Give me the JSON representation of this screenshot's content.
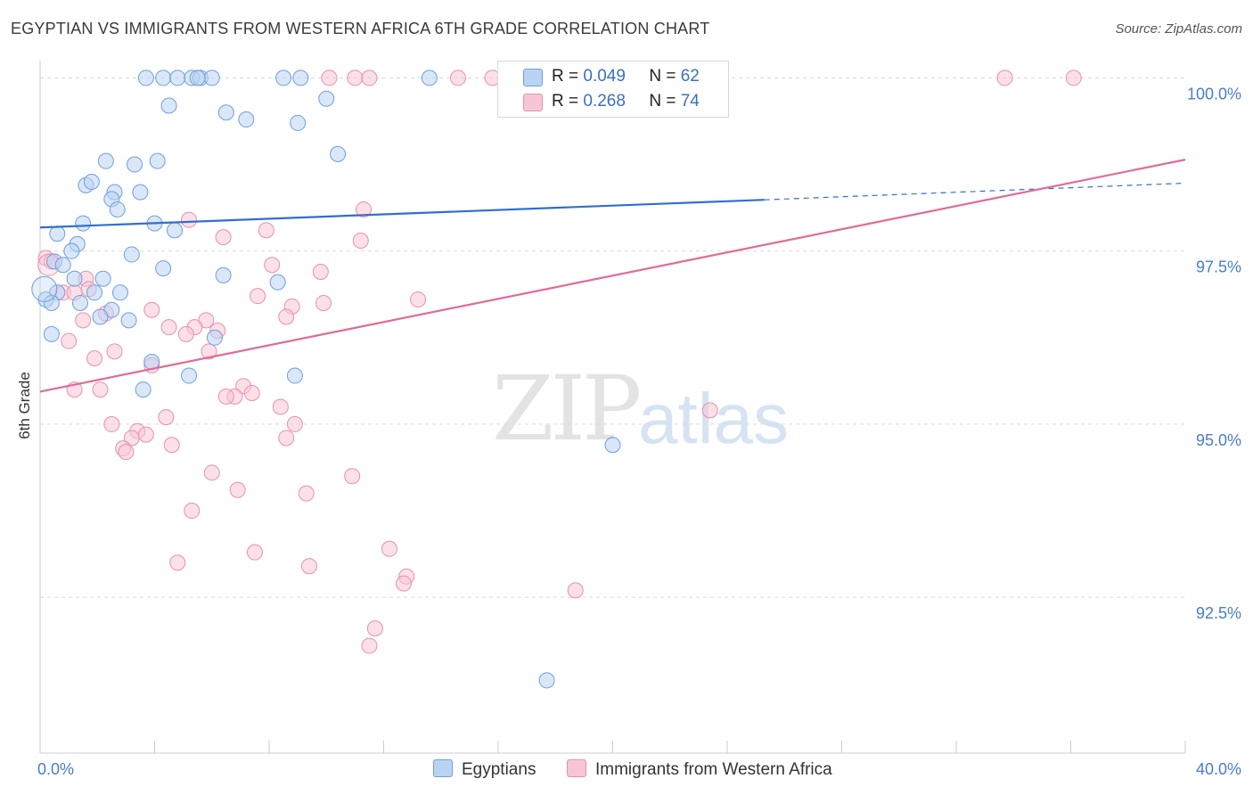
{
  "title": "EGYPTIAN VS IMMIGRANTS FROM WESTERN AFRICA 6TH GRADE CORRELATION CHART",
  "source": "Source: ZipAtlas.com",
  "watermark": {
    "zip": "ZIP",
    "atlas": "atlas"
  },
  "legend": {
    "rows": [
      {
        "r_label": "R =",
        "r_value": "0.049",
        "n_label": "N =",
        "n_value": "62"
      },
      {
        "r_label": "R =",
        "r_value": "0.268",
        "n_label": "N =",
        "n_value": "74"
      }
    ]
  },
  "bottom_legend": [
    "Egyptians",
    "Immigrants from Western Africa"
  ],
  "colors": {
    "blue_fill": "#b9d3f3",
    "blue_stroke": "#6f9fdc",
    "blue_line": "#2f6fd0",
    "pink_fill": "#f7c6d6",
    "pink_stroke": "#e88fae",
    "pink_line": "#e06b98",
    "grid": "#dcdcdc",
    "tick_text": "#4a7cc9"
  },
  "chart_data": {
    "type": "scatter",
    "title": "EGYPTIAN VS IMMIGRANTS FROM WESTERN AFRICA 6TH GRADE CORRELATION CHART",
    "xlabel": "",
    "ylabel": "6th Grade",
    "xlim": [
      0,
      40
    ],
    "ylim": [
      90.25,
      100.25
    ],
    "x_tick_labels": [
      "0.0%",
      "40.0%"
    ],
    "y_ticks": [
      92.5,
      95.0,
      97.5,
      100.0
    ],
    "y_tick_labels": [
      "92.5%",
      "95.0%",
      "97.5%",
      "100.0%"
    ],
    "grid": true,
    "legend_position": "top-center",
    "series": [
      {
        "name": "Egyptians",
        "color": "#6f9fdc",
        "R": 0.049,
        "N": 62,
        "trend": {
          "x0": 0,
          "y0": 97.84,
          "x1": 25.3,
          "y1": 98.24,
          "dashed_to_x": 40,
          "dashed_to_y": 98.48
        },
        "points": [
          [
            3.7,
            100.0
          ],
          [
            4.3,
            100.0
          ],
          [
            4.8,
            100.0
          ],
          [
            5.3,
            100.0
          ],
          [
            5.6,
            100.0
          ],
          [
            6.0,
            100.0
          ],
          [
            8.5,
            100.0
          ],
          [
            9.1,
            100.0
          ],
          [
            13.6,
            100.0
          ],
          [
            5.5,
            100.0
          ],
          [
            10.0,
            99.7
          ],
          [
            4.5,
            99.6
          ],
          [
            6.5,
            99.5
          ],
          [
            7.2,
            99.4
          ],
          [
            9.0,
            99.35
          ],
          [
            10.4,
            98.9
          ],
          [
            2.3,
            98.8
          ],
          [
            3.3,
            98.75
          ],
          [
            4.1,
            98.8
          ],
          [
            1.6,
            98.45
          ],
          [
            1.8,
            98.5
          ],
          [
            2.6,
            98.35
          ],
          [
            3.5,
            98.35
          ],
          [
            2.5,
            98.25
          ],
          [
            2.7,
            98.1
          ],
          [
            1.5,
            97.9
          ],
          [
            4.0,
            97.9
          ],
          [
            4.7,
            97.8
          ],
          [
            0.6,
            97.75
          ],
          [
            1.3,
            97.6
          ],
          [
            1.1,
            97.5
          ],
          [
            3.2,
            97.45
          ],
          [
            0.5,
            97.35
          ],
          [
            0.8,
            97.3
          ],
          [
            4.3,
            97.25
          ],
          [
            6.4,
            97.15
          ],
          [
            2.2,
            97.1
          ],
          [
            1.2,
            97.1
          ],
          [
            8.3,
            97.05
          ],
          [
            0.6,
            96.9
          ],
          [
            1.9,
            96.9
          ],
          [
            2.8,
            96.9
          ],
          [
            0.2,
            96.8
          ],
          [
            0.4,
            96.75
          ],
          [
            1.4,
            96.75
          ],
          [
            2.5,
            96.65
          ],
          [
            2.1,
            96.55
          ],
          [
            3.1,
            96.5
          ],
          [
            6.1,
            96.25
          ],
          [
            0.4,
            96.3
          ],
          [
            3.9,
            95.9
          ],
          [
            5.2,
            95.7
          ],
          [
            8.9,
            95.7
          ],
          [
            3.6,
            95.5
          ],
          [
            20.0,
            94.7
          ],
          [
            17.7,
            91.3
          ]
        ]
      },
      {
        "name": "Immigrants from Western Africa",
        "color": "#e88fae",
        "R": 0.268,
        "N": 74,
        "trend": {
          "x0": 0,
          "y0": 95.47,
          "x1": 40,
          "y1": 98.82
        },
        "points": [
          [
            10.1,
            100.0
          ],
          [
            11.0,
            100.0
          ],
          [
            11.5,
            100.0
          ],
          [
            14.6,
            100.0
          ],
          [
            15.8,
            100.0
          ],
          [
            16.5,
            100.0
          ],
          [
            17.5,
            100.0
          ],
          [
            33.7,
            100.0
          ],
          [
            36.1,
            100.0
          ],
          [
            11.3,
            98.1
          ],
          [
            5.2,
            97.95
          ],
          [
            7.9,
            97.8
          ],
          [
            6.4,
            97.7
          ],
          [
            11.2,
            97.65
          ],
          [
            0.2,
            97.4
          ],
          [
            0.4,
            97.35
          ],
          [
            8.1,
            97.3
          ],
          [
            9.8,
            97.2
          ],
          [
            1.6,
            97.1
          ],
          [
            1.7,
            96.95
          ],
          [
            0.8,
            96.9
          ],
          [
            1.2,
            96.9
          ],
          [
            7.6,
            96.85
          ],
          [
            13.2,
            96.8
          ],
          [
            9.9,
            96.75
          ],
          [
            8.8,
            96.7
          ],
          [
            3.9,
            96.65
          ],
          [
            8.6,
            96.55
          ],
          [
            2.3,
            96.6
          ],
          [
            1.5,
            96.5
          ],
          [
            5.8,
            96.5
          ],
          [
            4.5,
            96.4
          ],
          [
            5.4,
            96.4
          ],
          [
            6.2,
            96.35
          ],
          [
            5.1,
            96.3
          ],
          [
            1.0,
            96.2
          ],
          [
            2.6,
            96.05
          ],
          [
            5.9,
            96.05
          ],
          [
            1.9,
            95.95
          ],
          [
            3.9,
            95.85
          ],
          [
            7.1,
            95.55
          ],
          [
            1.2,
            95.5
          ],
          [
            2.1,
            95.5
          ],
          [
            7.4,
            95.45
          ],
          [
            6.8,
            95.4
          ],
          [
            6.5,
            95.4
          ],
          [
            8.4,
            95.25
          ],
          [
            23.4,
            95.2
          ],
          [
            4.4,
            95.1
          ],
          [
            2.5,
            95.0
          ],
          [
            8.9,
            95.0
          ],
          [
            3.4,
            94.9
          ],
          [
            3.7,
            94.85
          ],
          [
            8.6,
            94.8
          ],
          [
            3.2,
            94.8
          ],
          [
            4.6,
            94.7
          ],
          [
            2.9,
            94.65
          ],
          [
            3.0,
            94.6
          ],
          [
            6.0,
            94.3
          ],
          [
            10.9,
            94.25
          ],
          [
            6.9,
            94.05
          ],
          [
            9.3,
            94.0
          ],
          [
            5.3,
            93.75
          ],
          [
            12.2,
            93.2
          ],
          [
            7.5,
            93.15
          ],
          [
            4.8,
            93.0
          ],
          [
            9.4,
            92.95
          ],
          [
            12.8,
            92.8
          ],
          [
            12.7,
            92.7
          ],
          [
            18.7,
            92.6
          ],
          [
            11.7,
            92.05
          ],
          [
            11.5,
            91.8
          ]
        ]
      }
    ]
  }
}
